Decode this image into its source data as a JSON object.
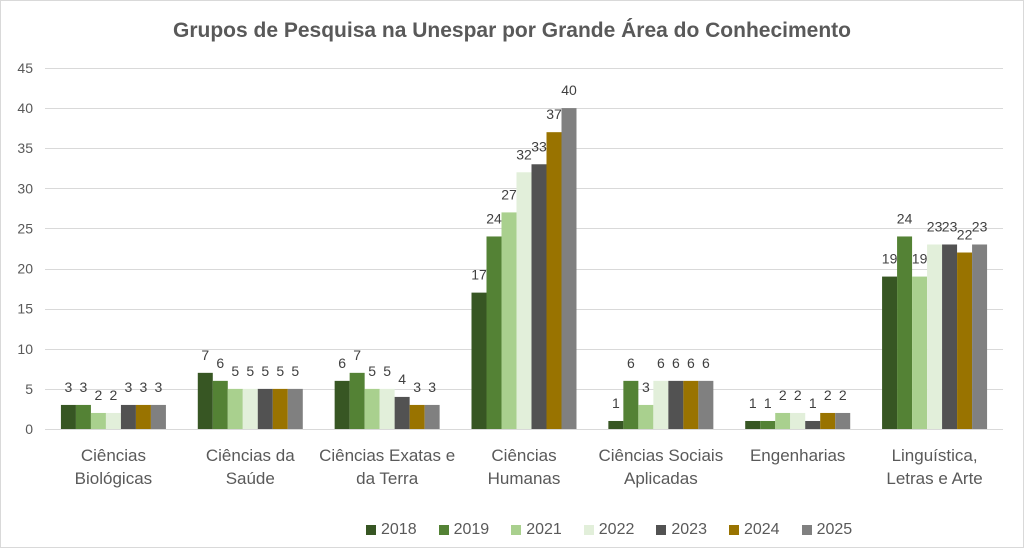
{
  "chart_data": {
    "type": "bar",
    "title": "Grupos de Pesquisa na Unespar por Grande Área do Conhecimento",
    "categories": [
      "Ciências Biológicas",
      "Ciências da Saúde",
      "Ciências Exatas e da Terra",
      "Ciências Humanas",
      "Ciências Sociais Aplicadas",
      "Engenharias",
      "Linguística, Letras e Arte"
    ],
    "series": [
      {
        "name": "2018",
        "color": "#375623",
        "values": [
          3,
          7,
          6,
          17,
          1,
          1,
          19
        ]
      },
      {
        "name": "2019",
        "color": "#548235",
        "values": [
          3,
          6,
          7,
          24,
          6,
          1,
          24
        ]
      },
      {
        "name": "2021",
        "color": "#A9D08E",
        "values": [
          2,
          5,
          5,
          27,
          3,
          2,
          19
        ]
      },
      {
        "name": "2022",
        "color": "#E2EFDA",
        "values": [
          2,
          5,
          5,
          32,
          6,
          2,
          23
        ]
      },
      {
        "name": "2023",
        "color": "#525252",
        "values": [
          3,
          5,
          4,
          33,
          6,
          1,
          23
        ]
      },
      {
        "name": "2024",
        "color": "#997300",
        "values": [
          3,
          5,
          3,
          37,
          6,
          2,
          22
        ]
      },
      {
        "name": "2025",
        "color": "#808080",
        "values": [
          3,
          5,
          3,
          40,
          6,
          2,
          23
        ]
      }
    ],
    "ylim": [
      0,
      45
    ],
    "yticks": [
      0,
      5,
      10,
      15,
      20,
      25,
      30,
      35,
      40,
      45
    ],
    "grid": true,
    "legend": "bottom",
    "data_labels": true
  }
}
